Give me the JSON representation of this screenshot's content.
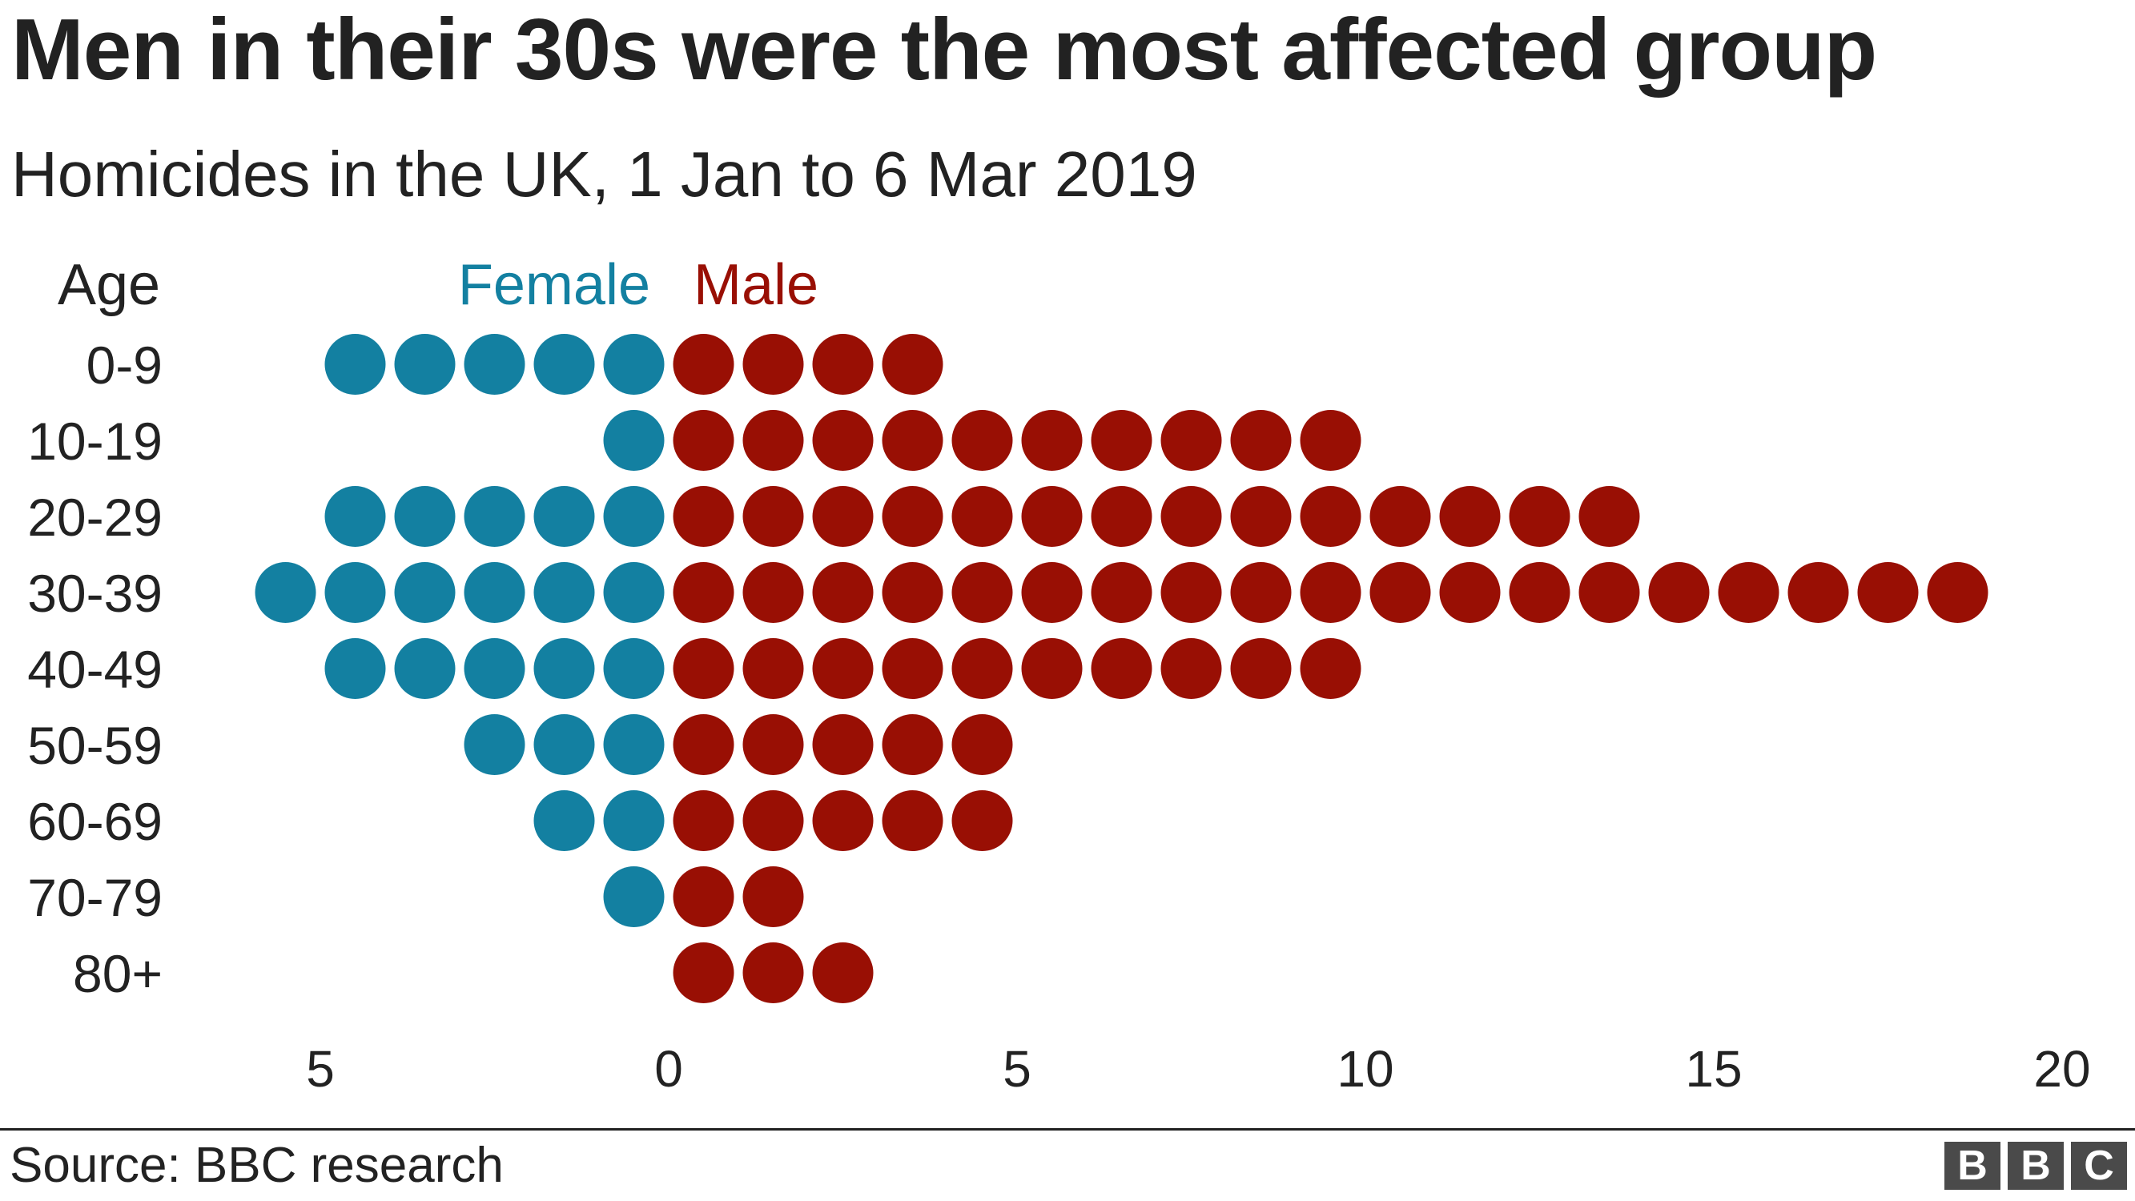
{
  "title": "Men in their 30s were the most affected group",
  "subtitle": "Homicides in the UK, 1 Jan to 6 Mar 2019",
  "source": "Source: BBC research",
  "logo": [
    "B",
    "B",
    "C"
  ],
  "colors": {
    "female": "#1380a1",
    "male": "#990f04",
    "text": "#222222"
  },
  "chart_data": {
    "type": "scatter",
    "subtype": "dot-population-pyramid",
    "y_axis_label": "Age",
    "categories": [
      "0-9",
      "10-19",
      "20-29",
      "30-39",
      "40-49",
      "50-59",
      "60-69",
      "70-79",
      "80+"
    ],
    "series": [
      {
        "name": "Female",
        "values": [
          5,
          1,
          5,
          6,
          5,
          3,
          2,
          1,
          0
        ]
      },
      {
        "name": "Male",
        "values": [
          4,
          10,
          14,
          19,
          10,
          5,
          5,
          2,
          3
        ]
      }
    ],
    "x_ticks": [
      {
        "value": -5,
        "label": "5"
      },
      {
        "value": 0,
        "label": "0"
      },
      {
        "value": 5,
        "label": "5"
      },
      {
        "value": 10,
        "label": "10"
      },
      {
        "value": 15,
        "label": "15"
      },
      {
        "value": 20,
        "label": "20"
      }
    ],
    "xlim": [
      -5,
      20
    ],
    "grid": false,
    "legend_placement": "top"
  }
}
